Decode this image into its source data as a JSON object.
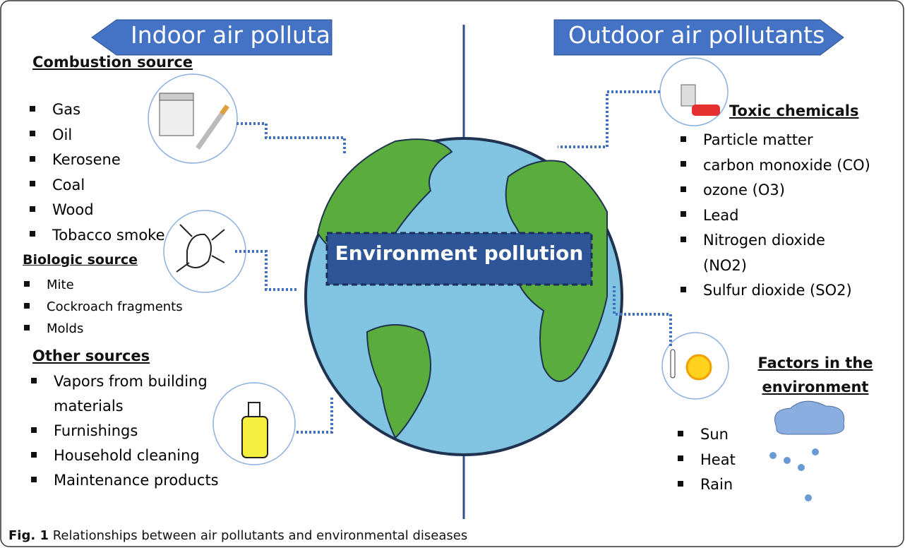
{
  "indoor": {
    "title": "Indoor air pollutants",
    "groups": [
      {
        "heading": "Combustion source",
        "items": [
          "Gas",
          "Oil",
          "Kerosene",
          "Coal",
          "Wood",
          "Tobacco smoke"
        ]
      },
      {
        "heading": "Biologic source",
        "items": [
          "Mite",
          "Cockroach fragments",
          "Molds"
        ]
      },
      {
        "heading": "Other sources",
        "items": [
          "Vapors from building materials",
          "Furnishings",
          "Household cleaning",
          "Maintenance products"
        ]
      }
    ]
  },
  "outdoor": {
    "title": "Outdoor air pollutants",
    "groups": [
      {
        "heading": "Toxic chemicals",
        "items": [
          "Particle matter",
          "carbon monoxide (CO)",
          "ozone (O3)",
          "Lead",
          "Nitrogen dioxide (NO2)",
          "Sulfur dioxide (SO2)"
        ]
      },
      {
        "heading": "Factors in the environment",
        "items": [
          "Sun",
          "Heat",
          "Rain"
        ]
      }
    ]
  },
  "center": "Environment pollution",
  "caption": {
    "label": "Fig. 1",
    "text": "Relationships between air pollutants and environmental diseases"
  }
}
